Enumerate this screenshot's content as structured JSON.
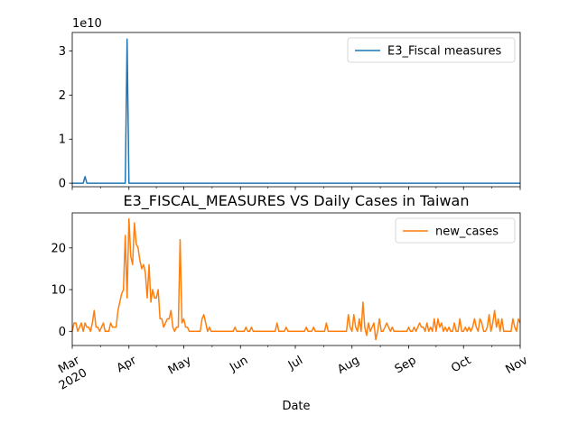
{
  "chart_data": [
    {
      "type": "line",
      "title": "",
      "xlabel": "",
      "ylabel": "",
      "offset_text": "1e10",
      "x_range": [
        "2020-03-01",
        "2020-11-01"
      ],
      "ylim": [
        -0.08,
        3.42
      ],
      "y_ticks": [
        0,
        1,
        2,
        3
      ],
      "y_tick_labels": [
        "0",
        "1",
        "2",
        "3"
      ],
      "legend_position": "upper right",
      "grid": false,
      "series": [
        {
          "name": "E3_Fiscal measures",
          "color": "#1f77b4",
          "points": [
            [
              "2020-03-01",
              0
            ],
            [
              "2020-03-07",
              0
            ],
            [
              "2020-03-08",
              0.15
            ],
            [
              "2020-03-09",
              0
            ],
            [
              "2020-03-10",
              0
            ],
            [
              "2020-03-30",
              0
            ],
            [
              "2020-03-31",
              3.27
            ],
            [
              "2020-04-01",
              0
            ],
            [
              "2020-11-01",
              0
            ]
          ]
        }
      ]
    },
    {
      "type": "line",
      "title": "E3_FISCAL_MEASURES VS Daily Cases in Taiwan",
      "xlabel": "Date",
      "ylabel": "",
      "x_range": [
        "2020-03-01",
        "2020-11-01"
      ],
      "ylim": [
        -3.4,
        28.4
      ],
      "y_ticks": [
        0,
        10,
        20
      ],
      "y_tick_labels": [
        "0",
        "10",
        "20"
      ],
      "x_ticks": [
        "2020-03-01",
        "2020-04-01",
        "2020-05-01",
        "2020-06-01",
        "2020-07-01",
        "2020-08-01",
        "2020-09-01",
        "2020-10-01",
        "2020-11-01"
      ],
      "x_tick_labels": [
        "Mar\n2020",
        "Apr",
        "May",
        "Jun",
        "Jul",
        "Aug",
        "Sep",
        "Oct",
        "Nov"
      ],
      "legend_position": "upper right",
      "grid": false,
      "series": [
        {
          "name": "new_cases",
          "color": "#ff7f0e",
          "points": [
            [
              "2020-03-01",
              0
            ],
            [
              "2020-03-02",
              2
            ],
            [
              "2020-03-03",
              2
            ],
            [
              "2020-03-04",
              0
            ],
            [
              "2020-03-05",
              1
            ],
            [
              "2020-03-06",
              2
            ],
            [
              "2020-03-07",
              0
            ],
            [
              "2020-03-08",
              2
            ],
            [
              "2020-03-09",
              1
            ],
            [
              "2020-03-10",
              1
            ],
            [
              "2020-03-11",
              0
            ],
            [
              "2020-03-12",
              2
            ],
            [
              "2020-03-13",
              5
            ],
            [
              "2020-03-14",
              1
            ],
            [
              "2020-03-15",
              1
            ],
            [
              "2020-03-16",
              0
            ],
            [
              "2020-03-17",
              1
            ],
            [
              "2020-03-18",
              2
            ],
            [
              "2020-03-19",
              0
            ],
            [
              "2020-03-20",
              0
            ],
            [
              "2020-03-21",
              0
            ],
            [
              "2020-03-22",
              2
            ],
            [
              "2020-03-23",
              1
            ],
            [
              "2020-03-24",
              1
            ],
            [
              "2020-03-25",
              1
            ],
            [
              "2020-03-26",
              5
            ],
            [
              "2020-03-27",
              7
            ],
            [
              "2020-03-28",
              9
            ],
            [
              "2020-03-29",
              10
            ],
            [
              "2020-03-30",
              23
            ],
            [
              "2020-03-31",
              8
            ],
            [
              "2020-04-01",
              27
            ],
            [
              "2020-04-02",
              18
            ],
            [
              "2020-04-03",
              16
            ],
            [
              "2020-04-04",
              26
            ],
            [
              "2020-04-05",
              21
            ],
            [
              "2020-04-06",
              20
            ],
            [
              "2020-04-07",
              17
            ],
            [
              "2020-04-08",
              15
            ],
            [
              "2020-04-09",
              16
            ],
            [
              "2020-04-10",
              14
            ],
            [
              "2020-04-11",
              8
            ],
            [
              "2020-04-12",
              16
            ],
            [
              "2020-04-13",
              7
            ],
            [
              "2020-04-14",
              10
            ],
            [
              "2020-04-15",
              8
            ],
            [
              "2020-04-16",
              8
            ],
            [
              "2020-04-17",
              10
            ],
            [
              "2020-04-18",
              3
            ],
            [
              "2020-04-19",
              3
            ],
            [
              "2020-04-20",
              1
            ],
            [
              "2020-04-21",
              2
            ],
            [
              "2020-04-22",
              3
            ],
            [
              "2020-04-23",
              3
            ],
            [
              "2020-04-24",
              5
            ],
            [
              "2020-04-25",
              1
            ],
            [
              "2020-04-26",
              0
            ],
            [
              "2020-04-27",
              1
            ],
            [
              "2020-04-28",
              1
            ],
            [
              "2020-04-29",
              22
            ],
            [
              "2020-04-30",
              2
            ],
            [
              "2020-05-01",
              3
            ],
            [
              "2020-05-02",
              1
            ],
            [
              "2020-05-03",
              1
            ],
            [
              "2020-05-04",
              0
            ],
            [
              "2020-05-05",
              0
            ],
            [
              "2020-05-06",
              0
            ],
            [
              "2020-05-07",
              0
            ],
            [
              "2020-05-08",
              0
            ],
            [
              "2020-05-09",
              0
            ],
            [
              "2020-05-10",
              0
            ],
            [
              "2020-05-11",
              3
            ],
            [
              "2020-05-12",
              4
            ],
            [
              "2020-05-13",
              2
            ],
            [
              "2020-05-14",
              0
            ],
            [
              "2020-05-15",
              1
            ],
            [
              "2020-05-16",
              0
            ],
            [
              "2020-05-17",
              0
            ],
            [
              "2020-05-28",
              0
            ],
            [
              "2020-05-29",
              1
            ],
            [
              "2020-05-30",
              0
            ],
            [
              "2020-06-03",
              0
            ],
            [
              "2020-06-04",
              1
            ],
            [
              "2020-06-05",
              0
            ],
            [
              "2020-06-06",
              0
            ],
            [
              "2020-06-07",
              1
            ],
            [
              "2020-06-08",
              0
            ],
            [
              "2020-06-20",
              0
            ],
            [
              "2020-06-21",
              2
            ],
            [
              "2020-06-22",
              0
            ],
            [
              "2020-06-25",
              0
            ],
            [
              "2020-06-26",
              1
            ],
            [
              "2020-06-27",
              0
            ],
            [
              "2020-07-06",
              0
            ],
            [
              "2020-07-07",
              1
            ],
            [
              "2020-07-08",
              0
            ],
            [
              "2020-07-10",
              0
            ],
            [
              "2020-07-11",
              1
            ],
            [
              "2020-07-12",
              0
            ],
            [
              "2020-07-17",
              0
            ],
            [
              "2020-07-18",
              2
            ],
            [
              "2020-07-19",
              0
            ],
            [
              "2020-07-29",
              0
            ],
            [
              "2020-07-30",
              4
            ],
            [
              "2020-07-31",
              1
            ],
            [
              "2020-08-01",
              0
            ],
            [
              "2020-08-02",
              4
            ],
            [
              "2020-08-03",
              1
            ],
            [
              "2020-08-04",
              0
            ],
            [
              "2020-08-05",
              3
            ],
            [
              "2020-08-06",
              0
            ],
            [
              "2020-08-07",
              7
            ],
            [
              "2020-08-08",
              1
            ],
            [
              "2020-08-09",
              -1
            ],
            [
              "2020-08-10",
              2
            ],
            [
              "2020-08-11",
              0
            ],
            [
              "2020-08-12",
              1
            ],
            [
              "2020-08-13",
              2
            ],
            [
              "2020-08-14",
              -2
            ],
            [
              "2020-08-15",
              0
            ],
            [
              "2020-08-16",
              3
            ],
            [
              "2020-08-17",
              0
            ],
            [
              "2020-08-18",
              0
            ],
            [
              "2020-08-19",
              1
            ],
            [
              "2020-08-20",
              2
            ],
            [
              "2020-08-21",
              1
            ],
            [
              "2020-08-22",
              0
            ],
            [
              "2020-08-23",
              1
            ],
            [
              "2020-08-24",
              0
            ],
            [
              "2020-08-25",
              0
            ],
            [
              "2020-08-31",
              0
            ],
            [
              "2020-09-01",
              1
            ],
            [
              "2020-09-02",
              0
            ],
            [
              "2020-09-03",
              0
            ],
            [
              "2020-09-04",
              1
            ],
            [
              "2020-09-05",
              0
            ],
            [
              "2020-09-06",
              1
            ],
            [
              "2020-09-07",
              2
            ],
            [
              "2020-09-08",
              1
            ],
            [
              "2020-09-09",
              1
            ],
            [
              "2020-09-10",
              0
            ],
            [
              "2020-09-11",
              2
            ],
            [
              "2020-09-12",
              0
            ],
            [
              "2020-09-13",
              1
            ],
            [
              "2020-09-14",
              0
            ],
            [
              "2020-09-15",
              3
            ],
            [
              "2020-09-16",
              0
            ],
            [
              "2020-09-17",
              3
            ],
            [
              "2020-09-18",
              1
            ],
            [
              "2020-09-19",
              2
            ],
            [
              "2020-09-20",
              0
            ],
            [
              "2020-09-21",
              1
            ],
            [
              "2020-09-22",
              0
            ],
            [
              "2020-09-23",
              1
            ],
            [
              "2020-09-24",
              0
            ],
            [
              "2020-09-25",
              0
            ],
            [
              "2020-09-26",
              2
            ],
            [
              "2020-09-27",
              0
            ],
            [
              "2020-09-28",
              0
            ],
            [
              "2020-09-29",
              3
            ],
            [
              "2020-09-30",
              0
            ],
            [
              "2020-10-01",
              0
            ],
            [
              "2020-10-02",
              1
            ],
            [
              "2020-10-03",
              0
            ],
            [
              "2020-10-04",
              1
            ],
            [
              "2020-10-05",
              0
            ],
            [
              "2020-10-06",
              1
            ],
            [
              "2020-10-07",
              3
            ],
            [
              "2020-10-08",
              1
            ],
            [
              "2020-10-09",
              0
            ],
            [
              "2020-10-10",
              3
            ],
            [
              "2020-10-11",
              2
            ],
            [
              "2020-10-12",
              0
            ],
            [
              "2020-10-13",
              0
            ],
            [
              "2020-10-14",
              1
            ],
            [
              "2020-10-15",
              4
            ],
            [
              "2020-10-16",
              0
            ],
            [
              "2020-10-17",
              2
            ],
            [
              "2020-10-18",
              5
            ],
            [
              "2020-10-19",
              1
            ],
            [
              "2020-10-20",
              3
            ],
            [
              "2020-10-21",
              0
            ],
            [
              "2020-10-22",
              3
            ],
            [
              "2020-10-23",
              0
            ],
            [
              "2020-10-24",
              0
            ],
            [
              "2020-10-25",
              0
            ],
            [
              "2020-10-26",
              0
            ],
            [
              "2020-10-27",
              0
            ],
            [
              "2020-10-28",
              3
            ],
            [
              "2020-10-29",
              1
            ],
            [
              "2020-10-30",
              0
            ],
            [
              "2020-10-31",
              3
            ],
            [
              "2020-11-01",
              2
            ]
          ]
        }
      ]
    }
  ]
}
